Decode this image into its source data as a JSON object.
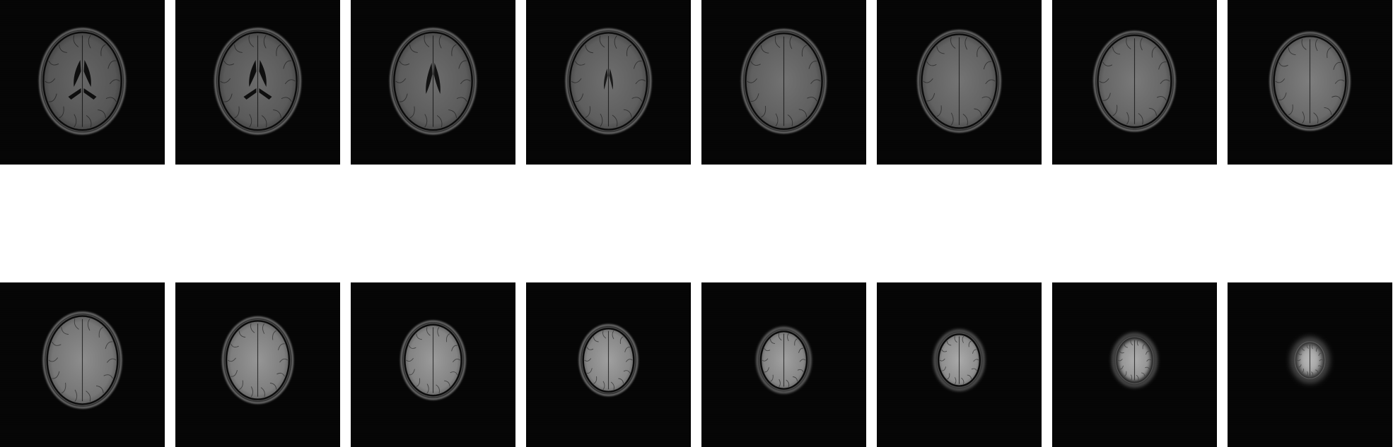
{
  "viewer": {
    "layout": {
      "rows": 2,
      "columns": 8
    },
    "tile_background": "#050505",
    "page_background": "#ffffff",
    "slices": [
      {
        "row": 0,
        "col": 0,
        "brain_scale": 1.0,
        "ventricles": "full",
        "brightness": 0.42,
        "edema_blur": 0.0
      },
      {
        "row": 0,
        "col": 1,
        "brain_scale": 1.0,
        "ventricles": "full",
        "brightness": 0.44,
        "edema_blur": 0.0
      },
      {
        "row": 0,
        "col": 2,
        "brain_scale": 1.0,
        "ventricles": "upper",
        "brightness": 0.45,
        "edema_blur": 0.0
      },
      {
        "row": 0,
        "col": 3,
        "brain_scale": 0.99,
        "ventricles": "slit",
        "brightness": 0.46,
        "edema_blur": 0.0
      },
      {
        "row": 0,
        "col": 4,
        "brain_scale": 0.98,
        "ventricles": "none",
        "brightness": 0.47,
        "edema_blur": 0.0
      },
      {
        "row": 0,
        "col": 5,
        "brain_scale": 0.96,
        "ventricles": "none",
        "brightness": 0.48,
        "edema_blur": 0.0
      },
      {
        "row": 0,
        "col": 6,
        "brain_scale": 0.94,
        "ventricles": "none",
        "brightness": 0.5,
        "edema_blur": 0.0
      },
      {
        "row": 0,
        "col": 7,
        "brain_scale": 0.92,
        "ventricles": "none",
        "brightness": 0.52,
        "edema_blur": 0.0
      },
      {
        "row": 1,
        "col": 0,
        "brain_scale": 0.9,
        "ventricles": "none",
        "brightness": 0.58,
        "edema_blur": 0.0
      },
      {
        "row": 1,
        "col": 1,
        "brain_scale": 0.8,
        "ventricles": "none",
        "brightness": 0.62,
        "edema_blur": 0.0
      },
      {
        "row": 1,
        "col": 2,
        "brain_scale": 0.72,
        "ventricles": "none",
        "brightness": 0.64,
        "edema_blur": 0.0
      },
      {
        "row": 1,
        "col": 3,
        "brain_scale": 0.64,
        "ventricles": "none",
        "brightness": 0.66,
        "edema_blur": 0.0
      },
      {
        "row": 1,
        "col": 4,
        "brain_scale": 0.58,
        "ventricles": "none",
        "brightness": 0.66,
        "edema_blur": 0.2
      },
      {
        "row": 1,
        "col": 5,
        "brain_scale": 0.52,
        "ventricles": "none",
        "brightness": 0.7,
        "edema_blur": 0.4
      },
      {
        "row": 1,
        "col": 6,
        "brain_scale": 0.44,
        "ventricles": "none",
        "brightness": 0.72,
        "edema_blur": 0.6
      },
      {
        "row": 1,
        "col": 7,
        "brain_scale": 0.34,
        "ventricles": "none",
        "brightness": 0.78,
        "edema_blur": 1.0
      }
    ]
  }
}
